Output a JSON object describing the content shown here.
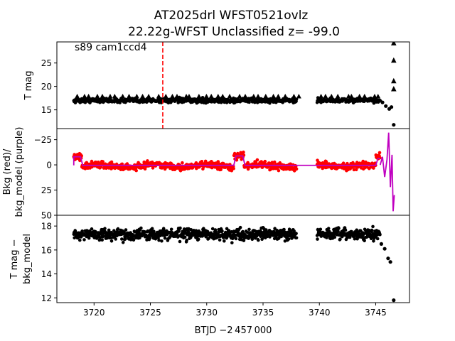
{
  "figure": {
    "title_line1": "AT2025drl  WFST0521ovlz",
    "title_line2": "22.22g-WFST Unclassified z= -99.0",
    "xlabel": "BTJD −2 457 000"
  },
  "chart_data": [
    {
      "type": "scatter",
      "ylabel": "T mag",
      "ylim": [
        29.5,
        11.0
      ],
      "inverted_y": true,
      "yticks": [
        15,
        20,
        25,
        30
      ],
      "ytick_labels": [
        "15",
        "20",
        "25",
        "30"
      ],
      "annotation": "s89 cam1ccd4",
      "vline": {
        "x": 3726.1,
        "style": "dashed",
        "color": "#ff0000"
      },
      "color": "#000000",
      "segments": [
        [
          3718.2,
          3738.0
        ],
        [
          3739.8,
          3745.4
        ]
      ],
      "base_mag": 17.0,
      "scatter": 0.9,
      "upper_limit_row": 17.9,
      "late_points": [
        {
          "x": 3745.6,
          "y": 16.6
        },
        {
          "x": 3745.9,
          "y": 15.8
        },
        {
          "x": 3746.2,
          "y": 15.2
        },
        {
          "x": 3746.4,
          "y": 15.6
        },
        {
          "x": 3746.6,
          "y": 11.8
        }
      ],
      "limit_points": [
        {
          "x": 3746.6,
          "y": 19.5
        },
        {
          "x": 3746.6,
          "y": 21.2
        },
        {
          "x": 3746.6,
          "y": 25.6
        },
        {
          "x": 3746.6,
          "y": 29.3
        }
      ]
    },
    {
      "type": "scatter",
      "ylabel_line1": "Bkg (red)/",
      "ylabel_line2": "bkg_model (purple)",
      "ylim": [
        -36,
        50
      ],
      "yticks": [
        -25,
        0,
        25,
        50
      ],
      "ytick_labels": [
        "−25",
        "0",
        "25",
        "50"
      ],
      "series": [
        {
          "name": "Bkg",
          "color": "#ff0000"
        },
        {
          "name": "bkg_model",
          "color": "#c000c0"
        }
      ],
      "bkg_segments": [
        [
          3718.2,
          3738.0
        ],
        [
          3739.8,
          3745.4
        ]
      ],
      "bkg_level": 1.0,
      "bkg_scatter": 4.5,
      "model_level": 0.5,
      "dips": [
        {
          "x0": 3718.2,
          "x1": 3718.9,
          "depth": -10
        },
        {
          "x0": 3732.4,
          "x1": 3733.3,
          "depth": -11
        },
        {
          "x0": 3745.0,
          "x1": 3745.4,
          "depth": -8
        }
      ],
      "model_tail": [
        {
          "x": 3745.4,
          "y": 0
        },
        {
          "x": 3745.6,
          "y": -8
        },
        {
          "x": 3745.8,
          "y": 12
        },
        {
          "x": 3746.0,
          "y": -5
        },
        {
          "x": 3746.15,
          "y": -32
        },
        {
          "x": 3746.3,
          "y": 22
        },
        {
          "x": 3746.45,
          "y": -10
        },
        {
          "x": 3746.55,
          "y": 46
        },
        {
          "x": 3746.65,
          "y": 30
        }
      ]
    },
    {
      "type": "scatter",
      "ylabel_line1": "T mag −",
      "ylabel_line2": "bkg_model",
      "ylim": [
        18.9,
        11.6
      ],
      "inverted_y": true,
      "yticks": [
        12,
        14,
        16,
        18
      ],
      "ytick_labels": [
        "12",
        "14",
        "16",
        "18"
      ],
      "color": "#000000",
      "segments": [
        [
          3718.2,
          3738.0
        ],
        [
          3739.8,
          3745.4
        ]
      ],
      "base_mag": 17.3,
      "scatter": 0.45,
      "late_points": [
        {
          "x": 3745.5,
          "y": 16.5
        },
        {
          "x": 3745.8,
          "y": 16.1
        },
        {
          "x": 3746.1,
          "y": 15.3
        },
        {
          "x": 3746.3,
          "y": 15.0
        },
        {
          "x": 3746.6,
          "y": 11.8
        }
      ]
    }
  ],
  "xaxis": {
    "xlim": [
      3716.7,
      3748.0
    ],
    "xticks": [
      3720,
      3725,
      3730,
      3735,
      3740,
      3745
    ],
    "xtick_labels": [
      "3720",
      "3725",
      "3730",
      "3735",
      "3740",
      "3745"
    ]
  }
}
